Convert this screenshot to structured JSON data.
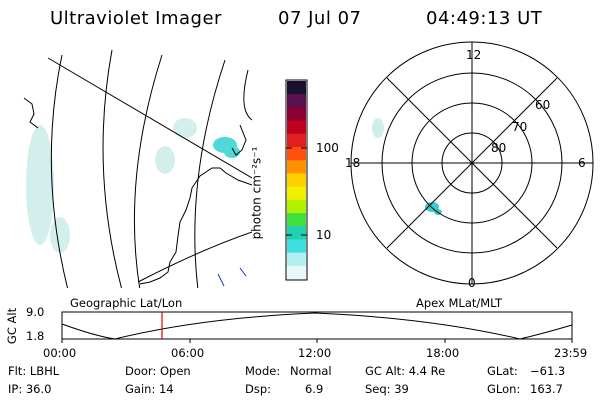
{
  "header": {
    "title": "Ultraviolet Imager",
    "date": "07 Jul 07",
    "time": "04:49:13 UT"
  },
  "colorbar": {
    "label": "photon cm⁻²s⁻¹",
    "ticks": [
      "100",
      "10"
    ],
    "colors": [
      "#1a1030",
      "#5a1050",
      "#8a0030",
      "#c00020",
      "#e02020",
      "#ff5010",
      "#ff9000",
      "#ffd000",
      "#f0f000",
      "#b0f000",
      "#40e040",
      "#20d0b0",
      "#40e0e0",
      "#b0f0f0",
      "#e8f8f8"
    ]
  },
  "polar_plot": {
    "mlt_labels": [
      "12",
      "18",
      "6",
      "0"
    ],
    "lat_labels": [
      "60",
      "70",
      "80"
    ]
  },
  "altitude_chart": {
    "ylabel": "GC Alt",
    "yticks": [
      "9.0",
      "1.8"
    ],
    "left_title": "Geographic Lat/Lon",
    "right_title": "Apex MLat/MLT",
    "xticks": [
      "00:00",
      "06:00",
      "12:00",
      "18:00",
      "23:59"
    ],
    "current_marker_time": "04:49",
    "marker_color": "#e00000"
  },
  "footer": {
    "flt": "Flt: LBHL",
    "door": "Door: Open",
    "mode_label": "Mode:",
    "mode_value": "Normal",
    "gc_alt": "GC Alt: 4.4 Re",
    "glat_label": "GLat:",
    "glat_value": "−61.3",
    "ip": "IP: 36.0",
    "gain": "Gain: 14",
    "dsp_label": "Dsp:",
    "dsp_value": "6.9",
    "seq": "Seq: 39",
    "glon_label": "GLon:",
    "glon_value": "163.7"
  }
}
